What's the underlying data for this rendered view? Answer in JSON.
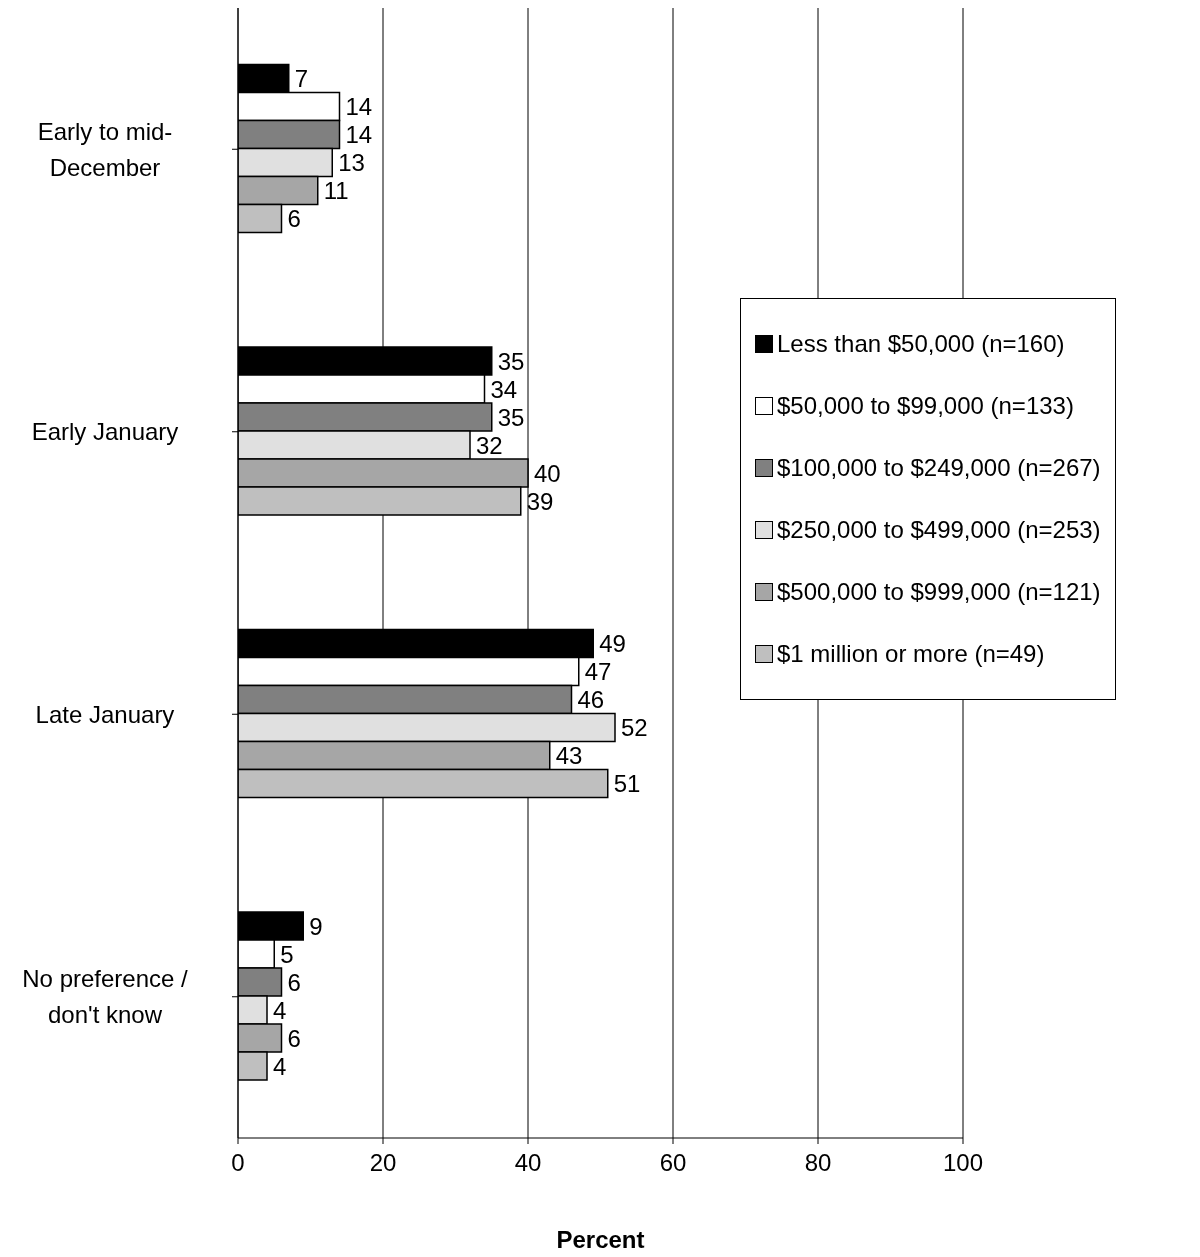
{
  "chart_data": {
    "type": "bar",
    "orientation": "horizontal",
    "xlabel": "Percent",
    "categories": [
      "Early to mid-December",
      "Early January",
      "Late January",
      "No preference / don't know"
    ],
    "series": [
      {
        "name": "Less than $50,000 (n=160)",
        "color": "#000000",
        "values": [
          7,
          35,
          49,
          9
        ]
      },
      {
        "name": "$50,000 to $99,000 (n=133)",
        "color": "#ffffff",
        "values": [
          14,
          34,
          47,
          5
        ]
      },
      {
        "name": "$100,000 to $249,000 (n=267)",
        "color": "#808080",
        "values": [
          14,
          35,
          46,
          6
        ]
      },
      {
        "name": "$250,000 to $499,000 (n=253)",
        "color": "#e0e0e0",
        "values": [
          13,
          32,
          52,
          4
        ]
      },
      {
        "name": "$500,000 to $999,000 (n=121)",
        "color": "#a6a6a6",
        "values": [
          11,
          40,
          43,
          6
        ]
      },
      {
        "name": "$1 million or more (n=49)",
        "color": "#bfbfbf",
        "values": [
          6,
          39,
          51,
          4
        ]
      }
    ],
    "xlim": [
      0,
      100
    ],
    "xticks": [
      0,
      20,
      40,
      60,
      80,
      100
    ],
    "grid": "x",
    "legend": "right",
    "data_labels": true
  }
}
